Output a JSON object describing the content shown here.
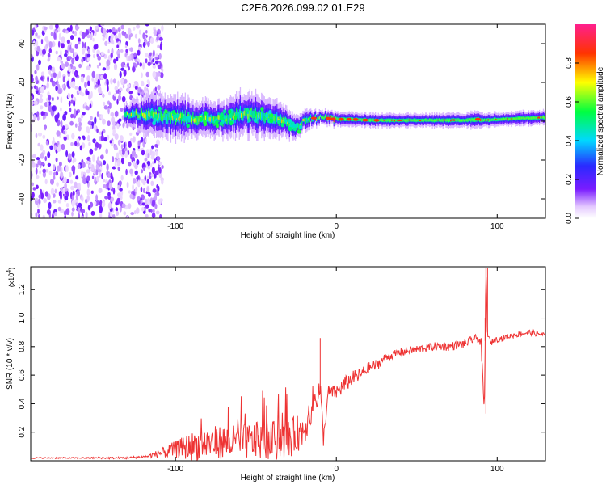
{
  "title": "C2E6.2026.099.02.01.E29",
  "chart_data": [
    {
      "type": "heatmap",
      "title": "C2E6.2026.099.02.01.E29",
      "xlabel": "Height of straight line (km)",
      "ylabel": "Frequency (Hz)",
      "xlim": [
        -190,
        130
      ],
      "ylim": [
        -50,
        50
      ],
      "x_ticks": [
        -100,
        0,
        100
      ],
      "y_ticks": [
        -40,
        -20,
        0,
        20,
        40
      ],
      "noise_region_x": [
        -190,
        -114
      ],
      "signal_ridge": {
        "x": [
          -132,
          -115,
          -100,
          -85,
          -70,
          -60,
          -50,
          -40,
          -30,
          -25,
          -20,
          -10,
          0,
          10,
          20,
          40,
          60,
          80,
          88,
          90,
          100,
          130
        ],
        "freq": [
          4,
          3,
          2,
          1,
          1,
          4,
          3,
          2,
          -1,
          -3,
          1,
          2,
          1,
          1,
          0.5,
          0.5,
          0.5,
          0.5,
          1,
          0.5,
          1,
          2
        ],
        "halfwidth": [
          3,
          6,
          6,
          5,
          5,
          6,
          6,
          5,
          4,
          3,
          3,
          2,
          2,
          2,
          2,
          2,
          2,
          2,
          3,
          2,
          2,
          2
        ]
      },
      "colorbar": {
        "label": "Normalized spectral amplitude",
        "range": [
          0,
          1
        ],
        "ticks": [
          "0.0",
          "0.2",
          "0.4",
          "0.6",
          "0.8"
        ]
      }
    },
    {
      "type": "line",
      "xlabel": "Height of straight line (km)",
      "ylabel": "SNR (10 * v/v)",
      "exponent_label": "(x10",
      "exponent_power": "4",
      "exponent_close": ")",
      "xlim": [
        -190,
        130
      ],
      "ylim": [
        0,
        1.36
      ],
      "x_ticks": [
        -100,
        0,
        100
      ],
      "y_ticks": [
        "0.2",
        "0.4",
        "0.6",
        "0.8",
        "1.0",
        "1.2"
      ],
      "color": "#ee3333",
      "series": [
        {
          "name": "SNR",
          "x": [
            -190,
            -160,
            -130,
            -118,
            -110,
            -100,
            -90,
            -80,
            -70,
            -60,
            -50,
            -40,
            -30,
            -20,
            -15,
            -10,
            -8,
            -5,
            0,
            5,
            10,
            15,
            20,
            25,
            30,
            40,
            50,
            60,
            70,
            80,
            85,
            88,
            90,
            92,
            93,
            94,
            95,
            96,
            98,
            100,
            110,
            120,
            130
          ],
          "y": [
            0.02,
            0.02,
            0.02,
            0.03,
            0.05,
            0.08,
            0.1,
            0.12,
            0.13,
            0.13,
            0.14,
            0.14,
            0.15,
            0.22,
            0.4,
            0.5,
            0.15,
            0.48,
            0.48,
            0.53,
            0.58,
            0.6,
            0.65,
            0.67,
            0.72,
            0.76,
            0.78,
            0.8,
            0.8,
            0.82,
            0.85,
            0.86,
            0.82,
            0.33,
            1.35,
            0.9,
            0.85,
            0.82,
            0.85,
            0.85,
            0.88,
            0.9,
            0.88
          ],
          "noise_amp": [
            0.005,
            0.005,
            0.008,
            0.01,
            0.03,
            0.06,
            0.1,
            0.12,
            0.12,
            0.12,
            0.13,
            0.14,
            0.14,
            0.12,
            0.12,
            0.1,
            0.05,
            0.05,
            0.05,
            0.06,
            0.05,
            0.05,
            0.04,
            0.04,
            0.03,
            0.03,
            0.03,
            0.03,
            0.03,
            0.03,
            0.03,
            0.03,
            0.04,
            0.02,
            0.04,
            0.03,
            0.03,
            0.02,
            0.02,
            0.02,
            0.02,
            0.02,
            0.02
          ]
        }
      ]
    }
  ]
}
